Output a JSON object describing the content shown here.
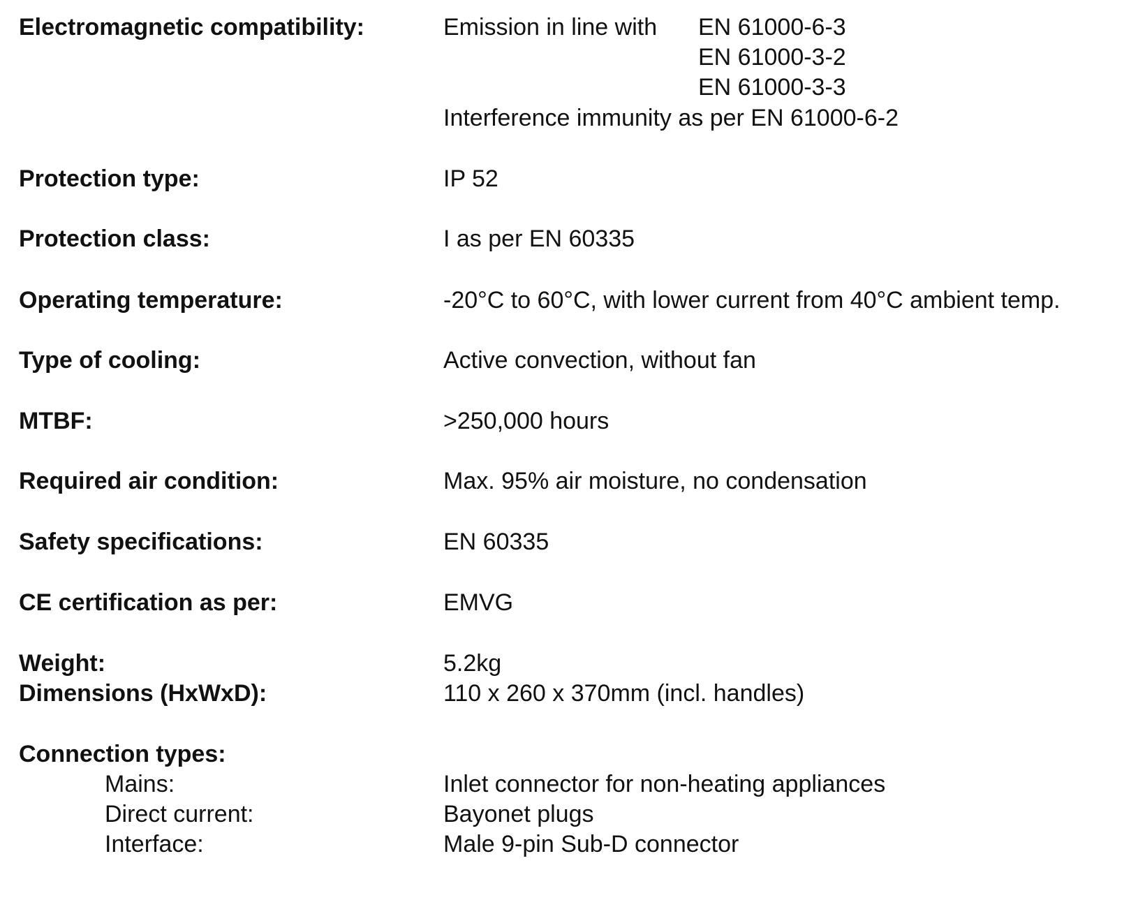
{
  "emc": {
    "label": "Electromagnetic compatibility:",
    "emission_prefix": "Emission in line with",
    "emission_standards": [
      "EN 61000-6-3",
      "EN 61000-3-2",
      "EN 61000-3-3"
    ],
    "immunity_prefix": "Interference immunity as per",
    "immunity_standard": "EN 61000-6-2"
  },
  "rows": [
    {
      "label": "Protection type:",
      "value": "IP 52"
    },
    {
      "label": "Protection class:",
      "value": "I as per EN 60335"
    },
    {
      "label": "Operating temperature:",
      "value": "-20°C to 60°C, with lower current from 40°C ambient temp."
    },
    {
      "label": "Type of cooling:",
      "value": "Active convection, without fan"
    },
    {
      "label": "MTBF:",
      "value": ">250,000 hours"
    },
    {
      "label": "Required air condition:",
      "value": "Max. 95% air moisture, no condensation"
    },
    {
      "label": "Safety specifications:",
      "value": "EN 60335"
    },
    {
      "label": "CE certification as per:",
      "value": "EMVG"
    },
    {
      "label": "Weight:",
      "value": "5.2kg"
    },
    {
      "label": "Dimensions (HxWxD):",
      "value": "110 x 260 x 370mm (incl. handles)"
    }
  ],
  "connections": {
    "label": "Connection types:",
    "items": [
      {
        "label": "Mains:",
        "value": "Inlet connector for non-heating appliances"
      },
      {
        "label": "Direct current:",
        "value": "Bayonet plugs"
      },
      {
        "label": "Interface:",
        "value": "Male 9-pin Sub-D connector"
      }
    ]
  }
}
